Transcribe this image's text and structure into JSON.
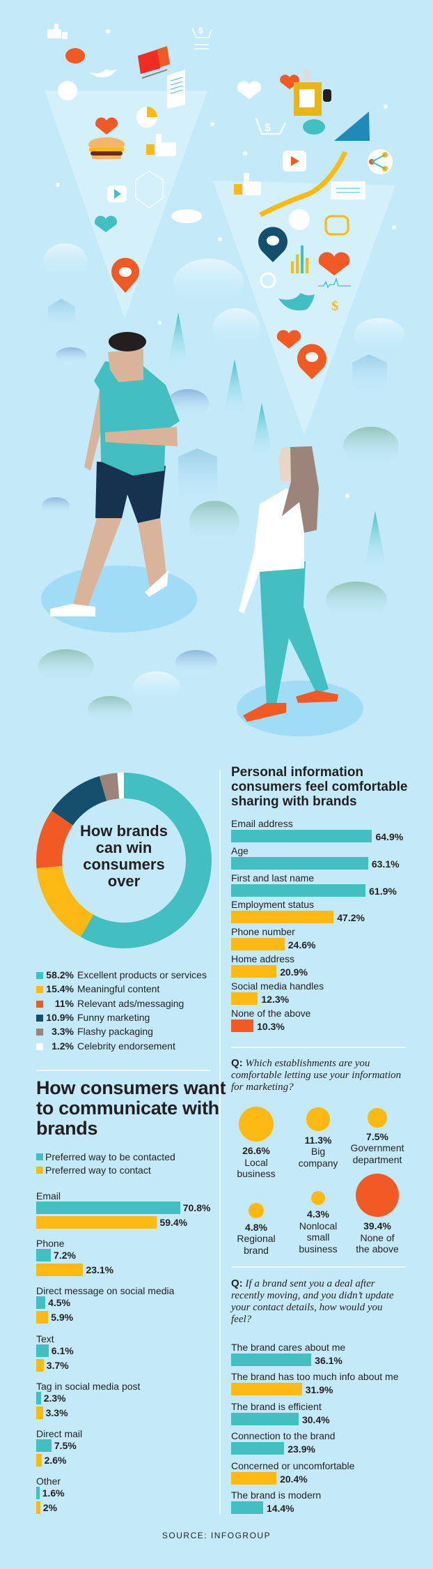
{
  "colors": {
    "background": "#c4eafa",
    "teal": "#43bfc2",
    "yellow": "#fcb813",
    "orange": "#f15a24",
    "dark_blue": "#14506e",
    "brown": "#9b8479",
    "white": "#ffffff",
    "text": "#231f20"
  },
  "chart_data": [
    {
      "type": "pie",
      "title": "How brands\ncan win\nconsumers\nover",
      "slices": [
        {
          "pct_label": "58.2%",
          "label": "Excellent products or services",
          "value": 58.2,
          "color": "#43bfc2"
        },
        {
          "pct_label": "15.4%",
          "label": "Meaningful content",
          "value": 15.4,
          "color": "#fcb813"
        },
        {
          "pct_label": "11%",
          "label": "Relevant ads/messaging",
          "value": 11,
          "color": "#f15a24"
        },
        {
          "pct_label": "10.9%",
          "label": "Funny marketing",
          "value": 10.9,
          "color": "#14506e"
        },
        {
          "pct_label": "3.3%",
          "label": "Flashy packaging",
          "value": 3.3,
          "color": "#9b8479"
        },
        {
          "pct_label": "1.2%",
          "label": "Celebrity endorsement",
          "value": 1.2,
          "color": "#ffffff"
        }
      ]
    },
    {
      "type": "bar",
      "title": "How consumers want to communicate with brands",
      "legend": [
        {
          "name": "Preferred way to be contacted",
          "color": "#43bfc2"
        },
        {
          "name": "Preferred way to contact",
          "color": "#fcb813"
        }
      ],
      "categories": [
        "Email",
        "Phone",
        "Direct message on social media",
        "Text",
        "Tag in social media post",
        "Direct mail",
        "Other"
      ],
      "series": [
        {
          "name": "Preferred way to be contacted",
          "values": [
            70.8,
            7.2,
            4.5,
            6.1,
            2.3,
            7.5,
            1.6
          ],
          "labels": [
            "70.8%",
            "7.2%",
            "4.5%",
            "6.1%",
            "2.3%",
            "7.5%",
            "1.6%"
          ]
        },
        {
          "name": "Preferred way to contact",
          "values": [
            59.4,
            23.1,
            5.9,
            3.7,
            3.3,
            2.6,
            2
          ],
          "labels": [
            "59.4%",
            "23.1%",
            "5.9%",
            "3.7%",
            "3.3%",
            "2.6%",
            "2%"
          ]
        }
      ]
    },
    {
      "type": "bar",
      "title": "Personal information consumers feel comfortable sharing with brands",
      "items": [
        {
          "label": "Email address",
          "value": 64.9,
          "value_label": "64.9%",
          "color": "#43bfc2"
        },
        {
          "label": "Age",
          "value": 63.1,
          "value_label": "63.1%",
          "color": "#43bfc2"
        },
        {
          "label": "First and last name",
          "value": 61.9,
          "value_label": "61.9%",
          "color": "#43bfc2"
        },
        {
          "label": "Employment status",
          "value": 47.2,
          "value_label": "47.2%",
          "color": "#fcb813"
        },
        {
          "label": "Phone number",
          "value": 24.6,
          "value_label": "24.6%",
          "color": "#fcb813"
        },
        {
          "label": "Home address",
          "value": 20.9,
          "value_label": "20.9%",
          "color": "#fcb813"
        },
        {
          "label": "Social media handles",
          "value": 12.3,
          "value_label": "12.3%",
          "color": "#fcb813"
        },
        {
          "label": "None of the above",
          "value": 10.3,
          "value_label": "10.3%",
          "color": "#f15a24"
        }
      ]
    },
    {
      "type": "scatter",
      "question_prefix": "Q:",
      "question": "Which establishments are you comfortable letting use your information for marketing?",
      "items": [
        {
          "value": 26.6,
          "value_label": "26.6%",
          "label": "Local\nbusiness",
          "color": "#fcb813"
        },
        {
          "value": 11.3,
          "value_label": "11.3%",
          "label": "Big\ncompany",
          "color": "#fcb813"
        },
        {
          "value": 7.5,
          "value_label": "7.5%",
          "label": "Government\ndepartment",
          "color": "#fcb813"
        },
        {
          "value": 4.8,
          "value_label": "4.8%",
          "label": "Regional\nbrand",
          "color": "#fcb813"
        },
        {
          "value": 4.3,
          "value_label": "4.3%",
          "label": "Nonlocal\nsmall\nbusiness",
          "color": "#fcb813"
        },
        {
          "value": 39.4,
          "value_label": "39.4%",
          "label": "None of\nthe above",
          "color": "#f15a24"
        }
      ]
    },
    {
      "type": "bar",
      "question_prefix": "Q:",
      "question": "If a brand sent you a deal after recently moving, and you didn’t update your contact details, how would you feel?",
      "items": [
        {
          "label": "The brand cares about me",
          "value": 36.1,
          "value_label": "36.1%",
          "color": "#43bfc2"
        },
        {
          "label": "The brand has too much info about me",
          "value": 31.9,
          "value_label": "31.9%",
          "color": "#fcb813"
        },
        {
          "label": "The brand is efficient",
          "value": 30.4,
          "value_label": "30.4%",
          "color": "#43bfc2"
        },
        {
          "label": "Connection to the brand",
          "value": 23.9,
          "value_label": "23.9%",
          "color": "#43bfc2"
        },
        {
          "label": "Concerned or uncomfortable",
          "value": 20.4,
          "value_label": "20.4%",
          "color": "#fcb813"
        },
        {
          "label": "The brand is modern",
          "value": 14.4,
          "value_label": "14.4%",
          "color": "#43bfc2"
        }
      ]
    }
  ],
  "source": "SOURCE: INFOGROUP"
}
